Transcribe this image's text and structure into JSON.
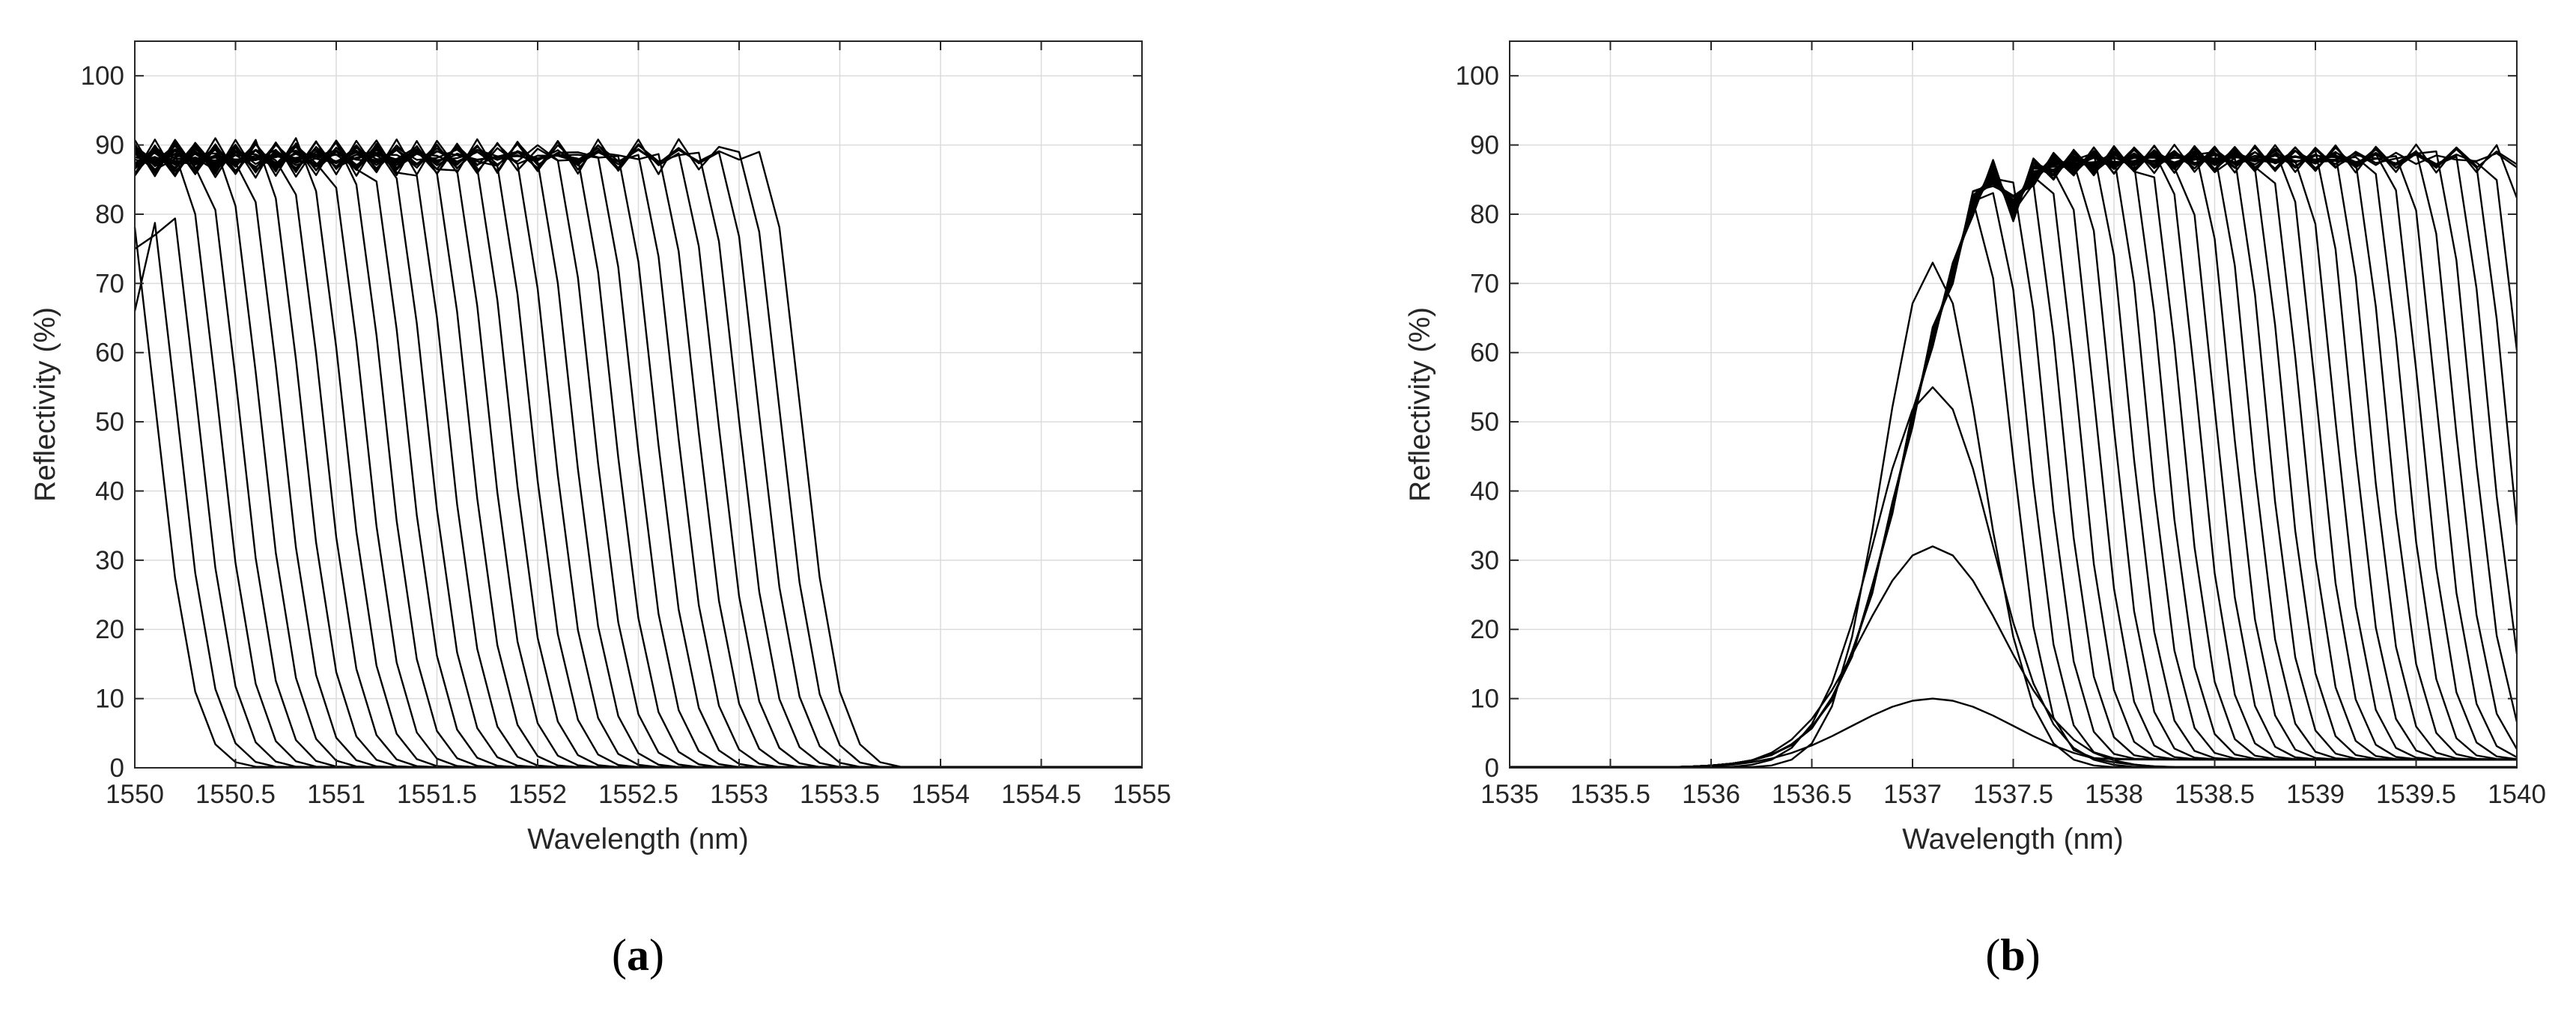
{
  "colors": {
    "line": "#000000",
    "grid": "#dcdcdc",
    "axis": "#262626"
  },
  "chart_data": [
    {
      "panel_label": "(a)",
      "panel_letter": "a",
      "type": "line",
      "xlabel": "Wavelength (nm)",
      "ylabel": "Reflectivity (%)",
      "xlim": [
        1550,
        1555
      ],
      "ylim": [
        0,
        105
      ],
      "xticks": [
        1550,
        1550.5,
        1551,
        1551.5,
        1552,
        1552.5,
        1553,
        1553.5,
        1554,
        1554.5,
        1555
      ],
      "xtick_labels": [
        "1550",
        "1550.5",
        "1551",
        "1551.5",
        "1552",
        "1552.5",
        "1553",
        "1553.5",
        "1554",
        "1554.5",
        "1555"
      ],
      "yticks": [
        0,
        10,
        20,
        30,
        40,
        50,
        60,
        70,
        80,
        90,
        100
      ],
      "ytick_labels": [
        "0",
        "10",
        "20",
        "30",
        "40",
        "50",
        "60",
        "70",
        "80",
        "90",
        "100"
      ],
      "grid": true,
      "family": {
        "count": 32,
        "edge_first": 1549.9,
        "edge_last": 1553.1,
        "plateau": 89,
        "falloff_width": 0.35,
        "left_tail": 0.45,
        "x_step": 0.1
      }
    },
    {
      "panel_label": "(b)",
      "panel_letter": "b",
      "type": "line",
      "xlabel": "Wavelength (nm)",
      "ylabel": "Reflectivity (%)",
      "xlim": [
        1535,
        1540
      ],
      "ylim": [
        0,
        105
      ],
      "xticks": [
        1535,
        1535.5,
        1536,
        1536.5,
        1537,
        1537.5,
        1538,
        1538.5,
        1539,
        1539.5,
        1540
      ],
      "xtick_labels": [
        "1535",
        "1535.5",
        "1536",
        "1536.5",
        "1537",
        "1537.5",
        "1538",
        "1538.5",
        "1539",
        "1539.5",
        "1540"
      ],
      "yticks": [
        0,
        10,
        20,
        30,
        40,
        50,
        60,
        70,
        80,
        90,
        100
      ],
      "ytick_labels": [
        "0",
        "10",
        "20",
        "30",
        "40",
        "50",
        "60",
        "70",
        "80",
        "90",
        "100"
      ],
      "grid": true,
      "rise_edge": 1536.95,
      "rise_width": 0.17,
      "peaks": [
        10,
        32,
        55,
        73
      ],
      "family": {
        "count": 34,
        "edge_first": 1537.3,
        "edge_last": 1540.1,
        "plateau": 88,
        "falloff_width": 0.3,
        "x_step": 0.1
      }
    }
  ]
}
